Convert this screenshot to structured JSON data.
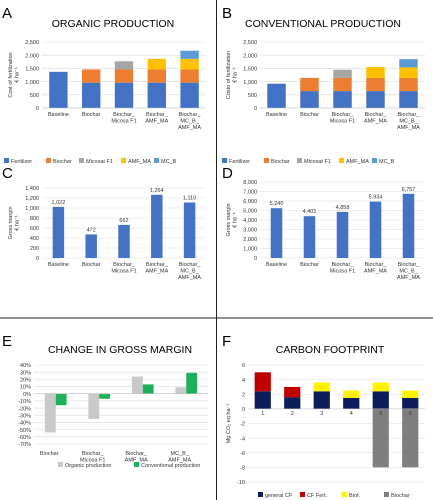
{
  "panels": {
    "A": {
      "letter": "A",
      "title": "ORGANIC PRODUCTION"
    },
    "B": {
      "letter": "B",
      "title": "CONVENTIONAL PRODUCTION"
    },
    "C": {
      "letter": "C"
    },
    "D": {
      "letter": "D"
    },
    "E": {
      "letter": "E",
      "title": "CHANGE IN GROSS MARGIN"
    },
    "F": {
      "letter": "F",
      "title": "CARBON FOOTPRINT"
    }
  },
  "colors": {
    "fertilizer": "#4472C4",
    "biochar": "#ED7D31",
    "micosat": "#A5A5A5",
    "amf": "#FFC000",
    "mcb": "#5B9BD5",
    "margin": "#4472C4",
    "organic": "#C9C9C9",
    "conventional": "#1DB05A",
    "general_cf": "#0D1D5C",
    "cf_fert": "#C00000",
    "biof": "#FFF200",
    "biochar_cf": "#7F7F7F",
    "divider": "#222222"
  },
  "chart_data": [
    {
      "id": "A",
      "type": "bar",
      "stacked": true,
      "ylabel": "Cost of fertilization\n€ ha⁻¹",
      "ylim": [
        0,
        2500
      ],
      "yticks": [
        "0",
        "500",
        "1,000",
        "1,500",
        "2,000",
        "2,500"
      ],
      "categories": [
        "Baseline",
        "Biochar",
        "Biochar_\nMicosa F1",
        "Biochar_\nAMF_MA",
        "Biochar_\nMC_B_\nAMF_MA"
      ],
      "series": [
        {
          "name": "Fertilizer",
          "color": "#4472C4",
          "values": [
            1370,
            960,
            960,
            960,
            960
          ]
        },
        {
          "name": "Biochar",
          "color": "#ED7D31",
          "values": [
            0,
            500,
            500,
            500,
            500
          ]
        },
        {
          "name": "Micosat F1",
          "color": "#A5A5A5",
          "values": [
            0,
            0,
            310,
            0,
            0
          ]
        },
        {
          "name": "AMF_MA",
          "color": "#FFC000",
          "values": [
            0,
            0,
            0,
            400,
            400
          ]
        },
        {
          "name": "MC_B",
          "color": "#5B9BD5",
          "values": [
            0,
            0,
            0,
            0,
            310
          ]
        }
      ],
      "legend_position": "bottom"
    },
    {
      "id": "B",
      "type": "bar",
      "stacked": true,
      "ylabel": "Costo of fertilization\n€ ha⁻¹",
      "ylim": [
        0,
        2500
      ],
      "yticks": [
        "0",
        "500",
        "1,000",
        "1,500",
        "2,000",
        "2,500"
      ],
      "categories": [
        "Baseline",
        "Biochar",
        "Biochar_\nMicosa F1",
        "Biochar_\nAMF_MA",
        "Biochar_\nMC_B_\nAMF_MA"
      ],
      "series": [
        {
          "name": "Fertilizer",
          "color": "#4472C4",
          "values": [
            920,
            640,
            640,
            640,
            640
          ]
        },
        {
          "name": "Biochar",
          "color": "#ED7D31",
          "values": [
            0,
            500,
            500,
            500,
            500
          ]
        },
        {
          "name": "Micosat F1",
          "color": "#A5A5A5",
          "values": [
            0,
            0,
            310,
            0,
            0
          ]
        },
        {
          "name": "AMF_MA",
          "color": "#FFC000",
          "values": [
            0,
            0,
            0,
            410,
            400
          ]
        },
        {
          "name": "MC_B",
          "color": "#5B9BD5",
          "values": [
            0,
            0,
            0,
            0,
            310
          ]
        }
      ],
      "legend_position": "bottom"
    },
    {
      "id": "C",
      "type": "bar",
      "ylabel": "Gross margin\n€ ha⁻¹",
      "ylim": [
        0,
        1400
      ],
      "yticks": [
        "0",
        "200",
        "400",
        "600",
        "800",
        "1,000",
        "1,200",
        "1,400"
      ],
      "categories": [
        "Baseline",
        "Biochar",
        "Biochar_\nMicosa F1",
        "Biochar_\nAMF_MA",
        "Biochar_\nMC_B_\nAMF_MA"
      ],
      "values": [
        1022,
        472,
        662,
        1264,
        1110
      ],
      "labels": [
        "1,022",
        "472",
        "662",
        "1,264",
        "1,110"
      ]
    },
    {
      "id": "D",
      "type": "bar",
      "ylabel": "Gross margin\n€ ha⁻¹",
      "ylim": [
        0,
        8000
      ],
      "yticks": [
        "0",
        "1,000",
        "2,000",
        "3,000",
        "4,000",
        "5,000",
        "6,000",
        "7,000",
        "8,000"
      ],
      "categories": [
        "Baseline",
        "Biochar",
        "Biochar_\nMicosa F1",
        "Biochar_\nAMF_MA",
        "Biochar_\nMC_B_\nAMF_MA"
      ],
      "values": [
        5240,
        4401,
        4858,
        5934,
        6757
      ],
      "labels": [
        "5,240",
        "4,401",
        "4,858",
        "5,934",
        "6,757"
      ]
    },
    {
      "id": "E",
      "type": "bar",
      "ylim": [
        -70,
        40
      ],
      "yticks": [
        "-70%",
        "-60%",
        "-50%",
        "-40%",
        "-30%",
        "-20%",
        "-10%",
        "0%",
        "10%",
        "20%",
        "30%",
        "40%"
      ],
      "categories": [
        "Biochar",
        "Biochar_\nMicosa F1",
        "Biochar_\nAMF_MA",
        "MC_B_\nAMF_MA"
      ],
      "series": [
        {
          "name": "Organic production",
          "color": "#C9C9C9",
          "values": [
            -54,
            -35,
            24,
            9
          ]
        },
        {
          "name": "Conventional production",
          "color": "#1DB05A",
          "values": [
            -16,
            -7,
            13,
            29
          ]
        }
      ],
      "legend_position": "bottom"
    },
    {
      "id": "F",
      "type": "bar",
      "stacked": true,
      "ylabel": "Mg CO₂ eq ha⁻¹",
      "ylim": [
        -10,
        6
      ],
      "yticks": [
        "-10",
        "-8",
        "-6",
        "-4",
        "-2",
        "0",
        "2",
        "4",
        "6"
      ],
      "categories": [
        "1",
        "2",
        "3",
        "4",
        "5",
        "6"
      ],
      "series": [
        {
          "name": "general CF",
          "color": "#0D1D5C",
          "values": [
            2.4,
            1.6,
            2.4,
            1.5,
            2.4,
            1.5
          ]
        },
        {
          "name": "CF Fert.",
          "color": "#C00000",
          "values": [
            2.6,
            1.4,
            0,
            0,
            0,
            0
          ]
        },
        {
          "name": "Biof.",
          "color": "#FFF200",
          "values": [
            0,
            0,
            1.2,
            1.0,
            1.2,
            1.0
          ]
        },
        {
          "name": "Biochar",
          "color": "#7F7F7F",
          "values": [
            0,
            0,
            0,
            0,
            -8.0,
            -8.0
          ]
        }
      ],
      "legend_position": "bottom"
    }
  ]
}
